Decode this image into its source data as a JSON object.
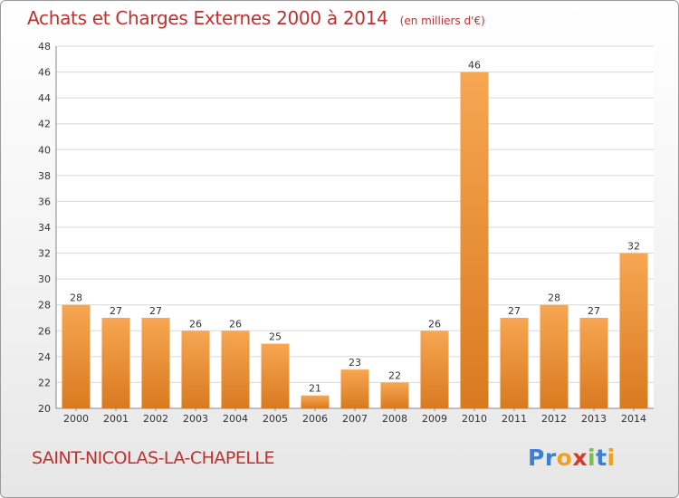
{
  "header": {
    "title": "Achats et Charges Externes 2000 à 2014",
    "subtitle": "(en milliers d'€)"
  },
  "footer": {
    "commune": "SAINT-NICOLAS-LA-CHAPELLE",
    "logo_text": "Proxiti",
    "logo_colors": [
      "#3a7fd8",
      "#3a7fd8",
      "#f0a020",
      "#d83a2a",
      "#7bc043",
      "#3a7fd8",
      "#f0a020"
    ]
  },
  "colors": {
    "title": "#c0302e",
    "bar_light": "#f7a652",
    "bar_dark": "#d97a20",
    "grid": "#d8d8d8"
  },
  "chart_data": {
    "type": "bar",
    "title": "Achats et Charges Externes 2000 à 2014",
    "subtitle": "(en milliers d'€)",
    "categories": [
      "2000",
      "2001",
      "2002",
      "2003",
      "2004",
      "2005",
      "2006",
      "2007",
      "2008",
      "2009",
      "2010",
      "2011",
      "2012",
      "2013",
      "2014"
    ],
    "values": [
      28,
      27,
      27,
      26,
      26,
      25,
      21,
      23,
      22,
      26,
      46,
      27,
      28,
      27,
      32
    ],
    "xlabel": "",
    "ylabel": "",
    "ylim": [
      20,
      48
    ],
    "yticks": [
      20,
      22,
      24,
      26,
      28,
      30,
      32,
      34,
      36,
      38,
      40,
      42,
      44,
      46,
      48
    ],
    "grid": true,
    "legend": "none"
  }
}
